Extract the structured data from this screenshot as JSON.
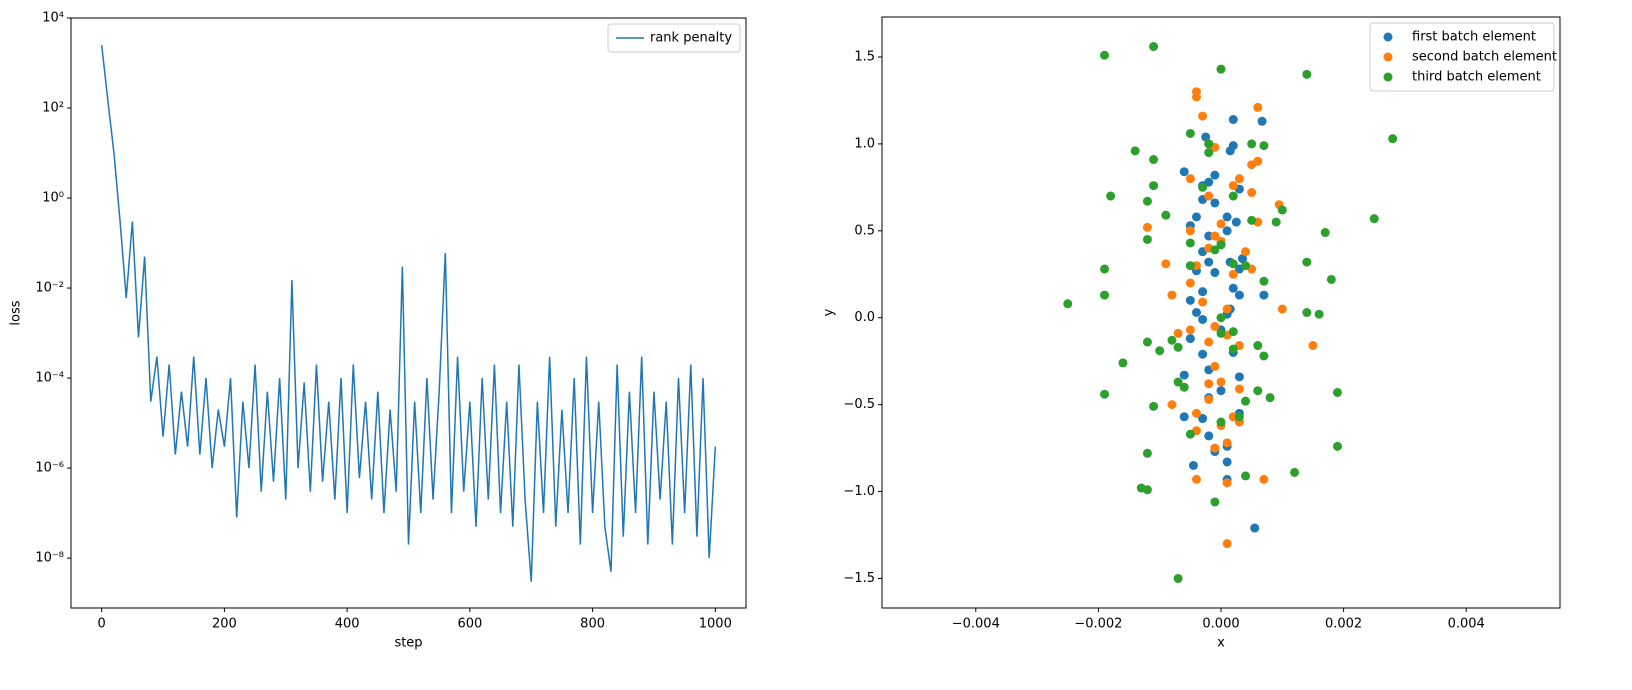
{
  "chart_data": [
    {
      "type": "line",
      "xlabel": "step",
      "ylabel": "loss",
      "yscale": "log",
      "legend": "upper right",
      "xlim": [
        -50,
        1050
      ],
      "xticks": [
        0,
        200,
        400,
        600,
        800,
        1000
      ],
      "ylim": [
        7.8e-10,
        10000
      ],
      "yticks": [
        {
          "value": 1e-08,
          "label": "10⁻⁸"
        },
        {
          "value": 1e-06,
          "label": "10⁻⁶"
        },
        {
          "value": 0.0001,
          "label": "10⁻⁴"
        },
        {
          "value": 0.01,
          "label": "10⁻²"
        },
        {
          "value": 1,
          "label": "10⁰"
        },
        {
          "value": 100,
          "label": "10²"
        },
        {
          "value": 10000,
          "label": "10⁴"
        }
      ],
      "x": [
        0,
        10,
        20,
        30,
        40,
        50,
        60,
        70,
        80,
        90,
        100,
        110,
        120,
        130,
        140,
        150,
        160,
        170,
        180,
        190,
        200,
        210,
        220,
        230,
        240,
        250,
        260,
        270,
        280,
        290,
        300,
        310,
        320,
        330,
        340,
        350,
        360,
        370,
        380,
        390,
        400,
        410,
        420,
        430,
        440,
        450,
        460,
        470,
        480,
        490,
        500,
        510,
        520,
        530,
        540,
        550,
        560,
        570,
        580,
        590,
        600,
        610,
        620,
        630,
        640,
        650,
        660,
        670,
        680,
        690,
        700,
        710,
        720,
        730,
        740,
        750,
        760,
        770,
        780,
        790,
        800,
        810,
        820,
        830,
        840,
        850,
        860,
        870,
        880,
        890,
        900,
        910,
        920,
        930,
        940,
        950,
        960,
        970,
        980,
        990,
        1000
      ],
      "series": [
        {
          "name": "rank penalty",
          "color": "#1f77b4",
          "values": [
            2500,
            150,
            10,
            0.3,
            0.006,
            0.3,
            0.0008,
            0.05,
            3e-05,
            0.0003,
            5e-06,
            0.0002,
            2e-06,
            5e-05,
            3e-06,
            0.0003,
            2e-06,
            0.0001,
            1e-06,
            2e-05,
            3e-06,
            0.0001,
            8e-08,
            3e-05,
            1e-06,
            0.0002,
            3e-07,
            5e-05,
            5e-07,
            0.0001,
            2e-07,
            0.015,
            1e-06,
            8e-05,
            3e-07,
            0.0002,
            5e-07,
            3e-05,
            2e-07,
            0.0001,
            1e-07,
            0.0002,
            6e-07,
            3e-05,
            2e-07,
            5e-05,
            1e-07,
            2e-05,
            3e-07,
            0.03,
            2e-08,
            3e-05,
            1e-07,
            0.0001,
            2e-07,
            5e-05,
            0.06,
            1e-07,
            0.0003,
            3e-07,
            3e-05,
            5e-08,
            0.0001,
            2e-07,
            0.0002,
            1e-07,
            3e-05,
            5e-08,
            0.0002,
            2e-07,
            3e-09,
            3e-05,
            1e-07,
            0.0003,
            5e-08,
            2e-05,
            1e-07,
            0.0001,
            2e-08,
            0.0003,
            1e-07,
            3e-05,
            5e-08,
            5e-09,
            0.0002,
            3e-08,
            5e-05,
            1e-07,
            0.0003,
            2e-08,
            5e-05,
            2e-07,
            3e-05,
            2e-08,
            0.0001,
            1e-07,
            0.0002,
            3e-08,
            0.0001,
            1e-08,
            3e-06
          ]
        }
      ]
    },
    {
      "type": "scatter",
      "xlabel": "x",
      "ylabel": "y",
      "legend": "upper right",
      "xlim": [
        -0.00553,
        0.00553
      ],
      "xticks": [
        {
          "value": -0.004,
          "label": "−0.004"
        },
        {
          "value": -0.002,
          "label": "−0.002"
        },
        {
          "value": 0,
          "label": "0.000"
        },
        {
          "value": 0.002,
          "label": "0.002"
        },
        {
          "value": 0.004,
          "label": "0.004"
        }
      ],
      "ylim": [
        -1.67,
        1.73
      ],
      "yticks": [
        {
          "value": -1.5,
          "label": "−1.5"
        },
        {
          "value": -1.0,
          "label": "−1.0"
        },
        {
          "value": -0.5,
          "label": "−0.5"
        },
        {
          "value": 0,
          "label": "0.0"
        },
        0.5,
        {
          "value": 1.0,
          "label": "1.0"
        },
        1.5
      ],
      "series": [
        {
          "name": "first batch element",
          "color": "#1f77b4",
          "x": [
            0.0002,
            0.00067,
            -0.00025,
            0.0002,
            0.00015,
            -0.0006,
            -0.0001,
            -0.0002,
            -0.0003,
            0.0003,
            -0.0003,
            -0.0001,
            -0.0004,
            0.0001,
            0.00025,
            -0.0005,
            0.0001,
            -0.0002,
            0.0,
            -0.0003,
            0.00035,
            -0.0002,
            0.00015,
            -0.0001,
            0.0003,
            -0.0004,
            0.0002,
            -0.0003,
            0.0003,
            -0.0005,
            0.0007,
            -0.0004,
            0.0001,
            0.00015,
            -0.0003,
            0.0,
            -0.0005,
            -0.0003,
            0.0002,
            -0.0006,
            -0.0002,
            0.0003,
            0.0,
            -0.0002,
            0.0003,
            -0.0006,
            -0.0003,
            -0.0002,
            0.0001,
            -0.0001,
            -0.00045,
            0.0001,
            0.0001,
            0.00055
          ],
          "values": [
            1.14,
            1.13,
            1.04,
            0.99,
            0.96,
            0.84,
            0.82,
            0.78,
            0.76,
            0.74,
            0.68,
            0.66,
            0.58,
            0.58,
            0.55,
            0.53,
            0.5,
            0.47,
            0.42,
            0.38,
            0.34,
            0.32,
            0.32,
            0.26,
            0.28,
            0.27,
            0.17,
            0.15,
            0.13,
            0.1,
            0.13,
            0.03,
            0.02,
            0.05,
            -0.01,
            -0.07,
            -0.12,
            -0.21,
            -0.2,
            -0.33,
            -0.3,
            -0.34,
            -0.42,
            -0.46,
            -0.55,
            -0.57,
            -0.58,
            -0.68,
            -0.74,
            -0.77,
            -0.85,
            -0.83,
            -0.93,
            -1.21
          ]
        },
        {
          "name": "second batch element",
          "color": "#ff7f0e",
          "x": [
            -0.0004,
            -0.0004,
            0.0006,
            -0.0003,
            -0.0002,
            -0.0001,
            0.0006,
            0.0005,
            -0.0005,
            0.0003,
            0.0002,
            0.0005,
            -0.0002,
            0.00095,
            0.0,
            0.0006,
            -0.0012,
            -0.0005,
            -0.0001,
            0.0,
            -0.0002,
            0.0004,
            -0.0009,
            -0.0004,
            0.0005,
            0.0002,
            -0.0005,
            -0.0008,
            -0.0003,
            0.001,
            0.0001,
            -0.0001,
            -0.0005,
            -0.0007,
            0.0001,
            -0.0002,
            0.0003,
            0.0015,
            -0.0001,
            -0.0002,
            0.0,
            0.0003,
            -0.0002,
            -0.0008,
            -0.0004,
            0.0002,
            0.0003,
            0.0,
            -0.0004,
            0.0001,
            -0.0001,
            -0.0004,
            0.0007,
            0.0001,
            0.0001
          ],
          "values": [
            1.3,
            1.27,
            1.21,
            1.16,
            1.0,
            0.98,
            0.9,
            0.88,
            0.8,
            0.8,
            0.76,
            0.72,
            0.7,
            0.65,
            0.54,
            0.55,
            0.52,
            0.5,
            0.47,
            0.44,
            0.4,
            0.38,
            0.31,
            0.3,
            0.28,
            0.25,
            0.2,
            0.13,
            0.09,
            0.05,
            0.05,
            -0.05,
            -0.07,
            -0.09,
            -0.1,
            -0.14,
            -0.16,
            -0.16,
            -0.28,
            -0.38,
            -0.37,
            -0.41,
            -0.47,
            -0.5,
            -0.55,
            -0.57,
            -0.6,
            -0.62,
            -0.65,
            -0.72,
            -0.75,
            -0.93,
            -0.93,
            -0.95,
            -1.3
          ]
        },
        {
          "name": "third batch element",
          "color": "#2ca02c",
          "x": [
            -0.0019,
            -0.0011,
            0.0,
            0.0014,
            0.0028,
            -0.0005,
            -0.0002,
            0.0005,
            0.0007,
            -0.0014,
            -0.0011,
            -0.0002,
            -0.0011,
            -0.0003,
            -0.0018,
            -0.0012,
            0.0002,
            -0.0009,
            0.0005,
            0.0009,
            0.001,
            0.0025,
            0.0017,
            -0.0012,
            -0.0005,
            -0.0001,
            0.0,
            0.0002,
            0.0004,
            -0.0005,
            0.0007,
            0.0014,
            0.0018,
            -0.0019,
            -0.0019,
            -0.0025,
            0.0014,
            0.0016,
            0.0,
            0.0002,
            0.0,
            -0.0012,
            -0.0007,
            -0.0008,
            -0.001,
            0.0002,
            0.0006,
            0.0007,
            -0.0016,
            -0.0007,
            -0.0006,
            0.0006,
            -0.0019,
            0.0008,
            0.0004,
            -0.0011,
            0.0003,
            0.0,
            -0.0005,
            0.0019,
            0.0019,
            -0.0012,
            0.0012,
            0.0004,
            -0.0013,
            -0.0012,
            -0.0001,
            -0.0007
          ],
          "values": [
            1.51,
            1.56,
            1.43,
            1.4,
            1.03,
            1.06,
            1.0,
            1.0,
            0.99,
            0.96,
            0.91,
            0.95,
            0.76,
            0.75,
            0.7,
            0.67,
            0.7,
            0.59,
            0.56,
            0.55,
            0.62,
            0.57,
            0.49,
            0.45,
            0.43,
            0.39,
            0.42,
            0.31,
            0.3,
            0.3,
            0.21,
            0.32,
            0.22,
            0.28,
            0.13,
            0.08,
            0.03,
            0.02,
            0.0,
            -0.08,
            -0.09,
            -0.14,
            -0.17,
            -0.13,
            -0.19,
            -0.18,
            -0.16,
            -0.22,
            -0.26,
            -0.37,
            -0.4,
            -0.42,
            -0.44,
            -0.46,
            -0.48,
            -0.51,
            -0.57,
            -0.6,
            -0.67,
            -0.43,
            -0.74,
            -0.78,
            -0.89,
            -0.91,
            -0.98,
            -0.99,
            -1.06,
            -1.5
          ]
        }
      ]
    }
  ]
}
